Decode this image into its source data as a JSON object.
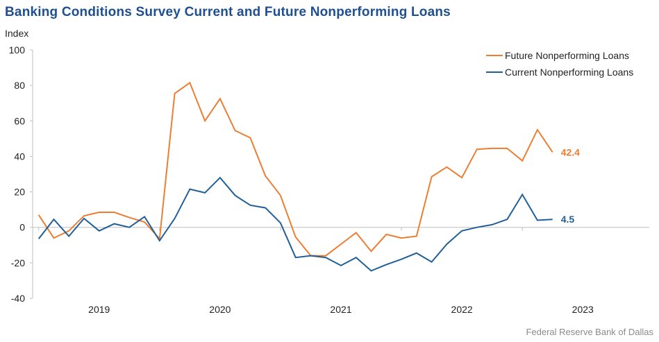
{
  "title": "Banking Conditions Survey Current and Future Nonperforming Loans",
  "source": "Federal Reserve Bank of Dallas",
  "colors": {
    "future": "#ed7d31",
    "current": "#1f5f96",
    "title": "#1d4f91"
  },
  "chart_data": {
    "type": "line",
    "ylabel": "Index",
    "xlabel": "",
    "ylim": [
      -40,
      100
    ],
    "yticks": [
      -40,
      -20,
      0,
      20,
      40,
      60,
      80,
      100
    ],
    "xlim": [
      2018.45,
      2023.55
    ],
    "xtick_labels": [
      "2019",
      "2020",
      "2021",
      "2022",
      "2023"
    ],
    "grid": false,
    "legend_position": "top-right",
    "x": [
      2018.5,
      2018.625,
      2018.75,
      2018.875,
      2019.0,
      2019.125,
      2019.25,
      2019.375,
      2019.5,
      2019.625,
      2019.75,
      2019.875,
      2020.0,
      2020.125,
      2020.25,
      2020.375,
      2020.5,
      2020.625,
      2020.75,
      2020.875,
      2021.0,
      2021.125,
      2021.25,
      2021.375,
      2021.5,
      2021.625,
      2021.75,
      2021.875,
      2022.0,
      2022.125,
      2022.25,
      2022.375,
      2022.5,
      2022.625,
      2022.75
    ],
    "series": [
      {
        "name": "Future Nonperforming Loans",
        "color": "#ed7d31",
        "end_label": "42.4",
        "values": [
          7.0,
          -6.0,
          -2.0,
          6.5,
          8.5,
          8.5,
          5.5,
          3.0,
          -6.5,
          75.5,
          81.5,
          60.0,
          72.5,
          54.5,
          50.5,
          29.0,
          18.0,
          -5.5,
          -16.0,
          -16.0,
          -9.5,
          -3.0,
          -13.5,
          -4.0,
          -6.0,
          -5.0,
          28.5,
          34.0,
          28.0,
          44.0,
          44.5,
          44.5,
          37.5,
          55.0,
          42.4
        ]
      },
      {
        "name": "Current Nonperforming Loans",
        "color": "#1f5f96",
        "end_label": "4.5",
        "values": [
          -6.5,
          4.5,
          -5.0,
          5.0,
          -2.0,
          2.0,
          0.0,
          6.0,
          -7.5,
          5.0,
          21.5,
          19.5,
          28.0,
          18.0,
          12.5,
          11.0,
          2.5,
          -17.0,
          -16.0,
          -17.0,
          -21.5,
          -17.0,
          -24.5,
          -21.0,
          -18.0,
          -14.5,
          -19.5,
          -9.5,
          -2.0,
          0.0,
          1.5,
          4.5,
          18.5,
          4.0,
          4.5
        ]
      }
    ]
  }
}
